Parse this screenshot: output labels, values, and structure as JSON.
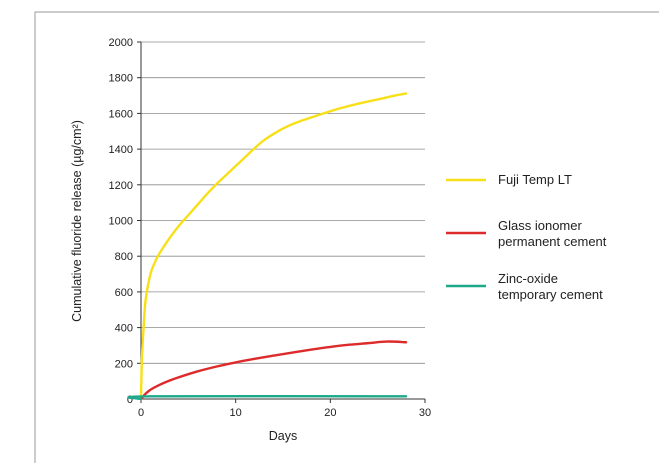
{
  "chart_data": {
    "type": "line",
    "xlabel": "Days",
    "ylabel": "Cumulative fluoride release (µg/cm²)",
    "xlim": [
      0,
      30
    ],
    "ylim": [
      0,
      2000
    ],
    "x_ticks": [
      "0",
      "10",
      "20",
      "30"
    ],
    "y_ticks": [
      "0",
      "200",
      "400",
      "600",
      "800",
      "1000",
      "1200",
      "1400",
      "1600",
      "1800",
      "2000"
    ],
    "grid": "horizontal",
    "legend_position": "right",
    "series": [
      {
        "name": "Fuji Temp LT",
        "color": "#f7e018",
        "x": [
          0,
          0.1,
          0.3,
          0.5,
          1,
          1.5,
          2,
          3,
          4,
          5,
          6,
          7,
          8,
          9,
          10,
          11,
          12,
          13,
          14,
          15,
          16,
          17,
          18,
          19,
          20,
          21,
          22,
          23,
          24,
          25,
          26,
          27,
          28
        ],
        "y": [
          0,
          230,
          420,
          560,
          700,
          770,
          820,
          900,
          970,
          1030,
          1090,
          1150,
          1205,
          1255,
          1305,
          1355,
          1405,
          1450,
          1485,
          1515,
          1540,
          1560,
          1578,
          1595,
          1612,
          1628,
          1642,
          1655,
          1667,
          1678,
          1690,
          1702,
          1712
        ]
      },
      {
        "name": "Glass ionomer permanent cement",
        "name_lines": [
          "Glass ionomer",
          "permanent cement"
        ],
        "color": "#dd2a2a",
        "x": [
          0,
          0.5,
          1,
          2,
          3,
          4,
          6,
          8,
          10,
          12,
          14,
          16,
          18,
          20,
          22,
          24,
          26,
          28
        ],
        "y": [
          0,
          30,
          52,
          80,
          103,
          122,
          155,
          182,
          205,
          225,
          243,
          260,
          277,
          292,
          304,
          313,
          322,
          318
        ]
      },
      {
        "name": "Zinc-oxide temporary cement",
        "name_lines": [
          "Zinc-oxide",
          "temporary cement"
        ],
        "color": "#1da88a",
        "x": [
          0,
          1,
          28
        ],
        "y": [
          0,
          15,
          15
        ]
      }
    ]
  }
}
